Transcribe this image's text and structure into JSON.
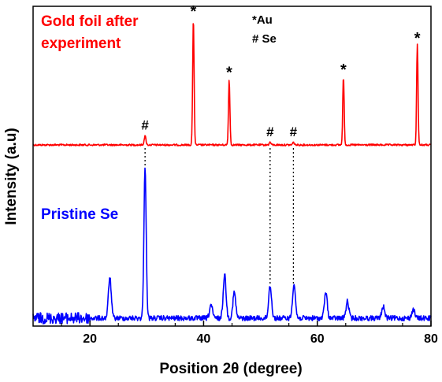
{
  "chart_data": {
    "type": "line",
    "xlabel": "Position 2θ (degree)",
    "ylabel": "Intensity (a.u)",
    "xlim": [
      10,
      80
    ],
    "x_ticks": [
      20,
      40,
      60,
      80
    ],
    "y_ticks_shown": false,
    "grid": false,
    "legend": {
      "au_line": "*Au",
      "se_line": "# Se"
    },
    "series": [
      {
        "name": "Gold foil after experiment",
        "color": "#ff0000",
        "label_lines": [
          "Gold foil after",
          "experiment"
        ],
        "peaks": [
          {
            "x": 29.7,
            "rel_height": 0.07,
            "marker": "#"
          },
          {
            "x": 38.2,
            "rel_height": 1.0,
            "marker": "*"
          },
          {
            "x": 44.5,
            "rel_height": 0.52,
            "marker": "*"
          },
          {
            "x": 51.7,
            "rel_height": 0.02,
            "marker": "#"
          },
          {
            "x": 55.8,
            "rel_height": 0.02,
            "marker": "#"
          },
          {
            "x": 64.6,
            "rel_height": 0.54,
            "marker": "*"
          },
          {
            "x": 77.6,
            "rel_height": 0.79,
            "marker": "*"
          }
        ]
      },
      {
        "name": "Pristine Se",
        "color": "#0000ff",
        "label_lines": [
          "Pristine Se"
        ],
        "peaks": [
          {
            "x": 23.5,
            "rel_height": 0.27
          },
          {
            "x": 29.7,
            "rel_height": 1.0
          },
          {
            "x": 41.3,
            "rel_height": 0.09
          },
          {
            "x": 43.7,
            "rel_height": 0.29
          },
          {
            "x": 45.4,
            "rel_height": 0.17
          },
          {
            "x": 51.7,
            "rel_height": 0.22
          },
          {
            "x": 55.9,
            "rel_height": 0.23
          },
          {
            "x": 61.5,
            "rel_height": 0.17
          },
          {
            "x": 65.3,
            "rel_height": 0.11
          },
          {
            "x": 71.6,
            "rel_height": 0.08
          },
          {
            "x": 76.9,
            "rel_height": 0.06
          }
        ]
      }
    ],
    "guide_lines_x": [
      29.7,
      51.7,
      55.8
    ]
  }
}
